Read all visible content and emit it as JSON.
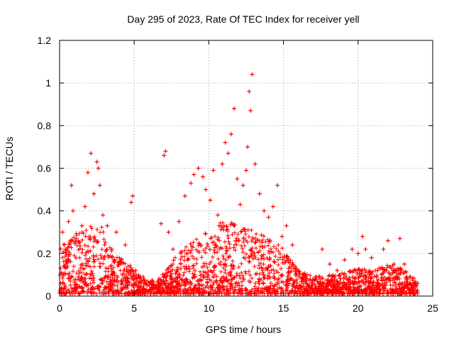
{
  "chart_data": {
    "type": "scatter",
    "title": "Day 295 of 2023, Rate Of TEC Index for receiver yell",
    "xlabel": "GPS time / hours",
    "ylabel": "ROTI / TECUs",
    "xlim": [
      0,
      25
    ],
    "ylim": [
      0,
      1.2
    ],
    "xticks": [
      0,
      5,
      10,
      15,
      20,
      25
    ],
    "xtick_labels": [
      "0",
      "5",
      "10",
      "15",
      "20",
      "25"
    ],
    "yticks": [
      0,
      0.2,
      0.4,
      0.6,
      0.8,
      1,
      1.2
    ],
    "ytick_labels": [
      "0",
      "0.2",
      "0.4",
      "0.6",
      "0.8",
      "1",
      "1.2"
    ],
    "grid": true,
    "marker": "+",
    "marker_color": "#ff0000",
    "series": [
      {
        "name": "ROTI",
        "points": [
          [
            0.1,
            0.02
          ],
          [
            0.2,
            0.3
          ],
          [
            0.4,
            0.22
          ],
          [
            0.6,
            0.35
          ],
          [
            0.8,
            0.52
          ],
          [
            0.9,
            0.4
          ],
          [
            1.1,
            0.18
          ],
          [
            1.3,
            0.25
          ],
          [
            1.5,
            0.33
          ],
          [
            1.7,
            0.42
          ],
          [
            1.9,
            0.58
          ],
          [
            2.1,
            0.67
          ],
          [
            2.3,
            0.48
          ],
          [
            2.5,
            0.63
          ],
          [
            2.6,
            0.6
          ],
          [
            2.7,
            0.52
          ],
          [
            2.9,
            0.38
          ],
          [
            3.2,
            0.33
          ],
          [
            3.5,
            0.22
          ],
          [
            3.8,
            0.3
          ],
          [
            4.1,
            0.16
          ],
          [
            4.4,
            0.24
          ],
          [
            4.8,
            0.44
          ],
          [
            4.9,
            0.47
          ],
          [
            5.1,
            0.12
          ],
          [
            5.6,
            0.09
          ],
          [
            6.2,
            0.07
          ],
          [
            6.8,
            0.34
          ],
          [
            7.0,
            0.66
          ],
          [
            7.1,
            0.68
          ],
          [
            7.3,
            0.3
          ],
          [
            7.6,
            0.22
          ],
          [
            8.0,
            0.35
          ],
          [
            8.4,
            0.47
          ],
          [
            8.8,
            0.53
          ],
          [
            9.0,
            0.57
          ],
          [
            9.3,
            0.6
          ],
          [
            9.6,
            0.56
          ],
          [
            9.8,
            0.5
          ],
          [
            10.1,
            0.45
          ],
          [
            10.3,
            0.59
          ],
          [
            10.6,
            0.38
          ],
          [
            10.9,
            0.62
          ],
          [
            11.1,
            0.72
          ],
          [
            11.3,
            0.67
          ],
          [
            11.5,
            0.76
          ],
          [
            11.7,
            0.88
          ],
          [
            11.9,
            0.55
          ],
          [
            12.1,
            0.43
          ],
          [
            12.3,
            0.52
          ],
          [
            12.5,
            0.59
          ],
          [
            12.6,
            0.7
          ],
          [
            12.7,
            0.96
          ],
          [
            12.8,
            0.87
          ],
          [
            12.9,
            1.04
          ],
          [
            13.1,
            0.62
          ],
          [
            13.4,
            0.48
          ],
          [
            13.7,
            0.4
          ],
          [
            14.0,
            0.37
          ],
          [
            14.3,
            0.42
          ],
          [
            14.6,
            0.52
          ],
          [
            14.9,
            0.28
          ],
          [
            15.2,
            0.33
          ],
          [
            15.6,
            0.24
          ],
          [
            16.0,
            0.12
          ],
          [
            16.5,
            0.09
          ],
          [
            17.1,
            0.08
          ],
          [
            17.6,
            0.22
          ],
          [
            18.1,
            0.15
          ],
          [
            18.6,
            0.12
          ],
          [
            19.1,
            0.17
          ],
          [
            19.6,
            0.22
          ],
          [
            20.0,
            0.2
          ],
          [
            20.3,
            0.28
          ],
          [
            20.5,
            0.22
          ],
          [
            20.9,
            0.18
          ],
          [
            21.3,
            0.12
          ],
          [
            21.7,
            0.22
          ],
          [
            22.0,
            0.26
          ],
          [
            22.4,
            0.15
          ],
          [
            22.8,
            0.27
          ],
          [
            23.1,
            0.15
          ],
          [
            23.5,
            0.09
          ],
          [
            23.9,
            0.05
          ]
        ]
      }
    ]
  }
}
